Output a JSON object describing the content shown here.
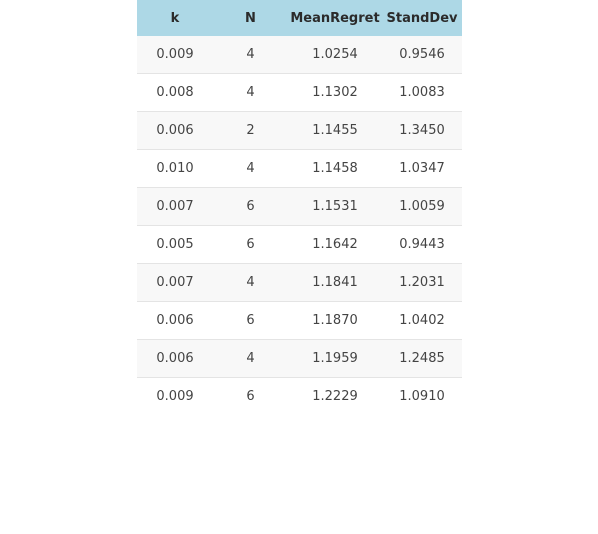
{
  "table": {
    "columns": [
      "k",
      "N",
      "MeanRegret",
      "StandDev"
    ],
    "rows": [
      [
        "0.009",
        "4",
        "1.0254",
        "0.9546"
      ],
      [
        "0.008",
        "4",
        "1.1302",
        "1.0083"
      ],
      [
        "0.006",
        "2",
        "1.1455",
        "1.3450"
      ],
      [
        "0.010",
        "4",
        "1.1458",
        "1.0347"
      ],
      [
        "0.007",
        "6",
        "1.1531",
        "1.0059"
      ],
      [
        "0.005",
        "6",
        "1.1642",
        "0.9443"
      ],
      [
        "0.007",
        "4",
        "1.1841",
        "1.2031"
      ],
      [
        "0.006",
        "6",
        "1.1870",
        "1.0402"
      ],
      [
        "0.006",
        "4",
        "1.1959",
        "1.2485"
      ],
      [
        "0.009",
        "6",
        "1.2229",
        "1.0910"
      ]
    ]
  },
  "colors": {
    "header_bg": "#add8e6",
    "row_odd_bg": "#f8f8f8",
    "row_even_bg": "#ffffff",
    "border": "#e4e4e4"
  }
}
